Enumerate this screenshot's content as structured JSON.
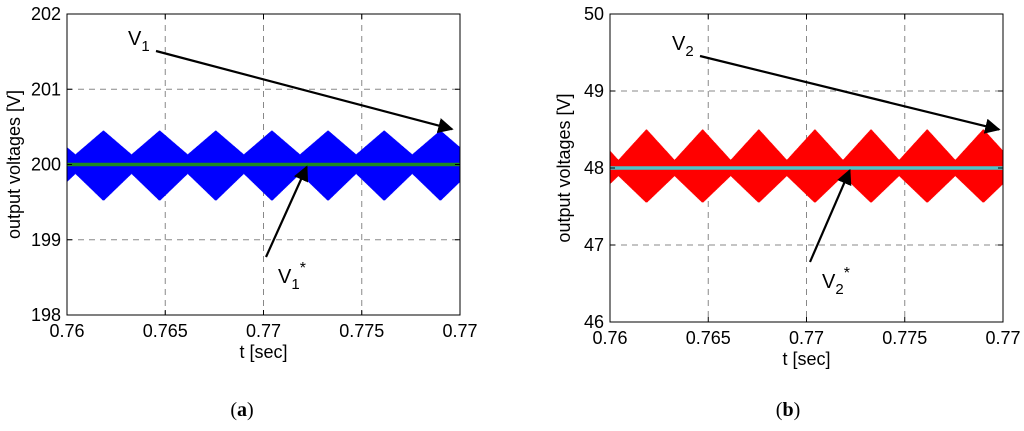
{
  "chart_data": [
    {
      "type": "line",
      "panel_label": "a",
      "xlabel": "t [sec]",
      "ylabel": "output voltages [V]",
      "xlim": [
        0.76,
        0.77
      ],
      "ylim": [
        198,
        202
      ],
      "x_ticks": [
        "0.76",
        "0.765",
        "0.77",
        "0.775",
        "0.77"
      ],
      "y_ticks": [
        "198",
        "199",
        "200",
        "201",
        "202"
      ],
      "grid": true,
      "series": [
        {
          "name": "V1",
          "kind": "ripple-band",
          "color": "#0000ff",
          "center": 200.0,
          "envelope_upper": [
            200.45,
            200.13
          ],
          "envelope_lower": [
            199.88,
            199.52
          ],
          "period_cycles": 7
        },
        {
          "name": "V1*",
          "kind": "reference",
          "color": "#1f8a1f",
          "value": 200.0
        }
      ],
      "annotations": [
        {
          "label": "V",
          "sub": "1",
          "sup": "",
          "target_x": 0.7698,
          "target_y": 200.47
        },
        {
          "label": "V",
          "sub": "1",
          "sup": "*",
          "target_x": 0.7661,
          "target_y": 199.97
        }
      ]
    },
    {
      "type": "line",
      "panel_label": "b",
      "xlabel": "t [sec]",
      "ylabel": "output voltages [V]",
      "xlim": [
        0.76,
        0.77
      ],
      "ylim": [
        46,
        50
      ],
      "x_ticks": [
        "0.76",
        "0.765",
        "0.77",
        "0.775",
        "0.77"
      ],
      "y_ticks": [
        "46",
        "47",
        "48",
        "49",
        "50"
      ],
      "grid": true,
      "series": [
        {
          "name": "V2",
          "kind": "ripple-band",
          "color": "#ff0000",
          "center": 48.0,
          "envelope_upper": [
            48.5,
            48.1
          ],
          "envelope_lower": [
            47.9,
            47.55
          ],
          "period_cycles": 7
        },
        {
          "name": "V2*",
          "kind": "reference",
          "color": "#4fc3c8",
          "value": 48.0
        }
      ],
      "annotations": [
        {
          "label": "V",
          "sub": "2",
          "sup": "",
          "target_x": 0.7699,
          "target_y": 48.5
        },
        {
          "label": "V",
          "sub": "2",
          "sup": "*",
          "target_x": 0.7661,
          "target_y": 47.97
        }
      ]
    }
  ],
  "captions": [
    "a",
    "b"
  ]
}
